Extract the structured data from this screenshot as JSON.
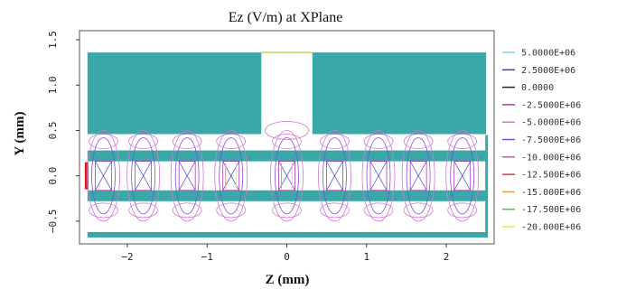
{
  "chart_data": {
    "type": "contour",
    "title": "Ez (V/m) at XPlane",
    "xlabel": "Z (mm)",
    "ylabel": "Y (mm)",
    "xlim": [
      -2.6,
      2.6
    ],
    "ylim": [
      -0.75,
      1.6
    ],
    "xticks": [
      -2,
      -1,
      0,
      1,
      2
    ],
    "yticks": [
      -0.5,
      0.0,
      0.5,
      1.0,
      1.5
    ],
    "xtick_labels": [
      "−2",
      "−1",
      "0",
      "1",
      "2"
    ],
    "ytick_labels": [
      "−0.5",
      "0.0",
      "0.5",
      "1.0",
      "1.5"
    ],
    "legend_position": "right",
    "levels": [
      {
        "label": "5.0000E+06",
        "color": "#7fd6e6"
      },
      {
        "label": "2.5000E+06",
        "color": "#3a3acf"
      },
      {
        "label": "0.0000",
        "color": "#222222"
      },
      {
        "label": "-2.5000E+06",
        "color": "#b03ab0"
      },
      {
        "label": "-5.0000E+06",
        "color": "#d07ad0"
      },
      {
        "label": "-7.5000E+06",
        "color": "#8a4ad8"
      },
      {
        "label": "-10.000E+06",
        "color": "#c45ab8"
      },
      {
        "label": "-12.500E+06",
        "color": "#d04040"
      },
      {
        "label": "-15.000E+06",
        "color": "#e8a040"
      },
      {
        "label": "-17.500E+06",
        "color": "#50c050"
      },
      {
        "label": "-20.000E+06",
        "color": "#e8e840"
      }
    ],
    "vane_z": [
      -2.3,
      -1.8,
      -1.25,
      -0.7,
      0.0,
      0.6,
      1.15,
      1.65,
      2.2
    ],
    "colors": {
      "metal": "#3aa8a8",
      "frame": "#555555",
      "port": "#e02020"
    }
  }
}
